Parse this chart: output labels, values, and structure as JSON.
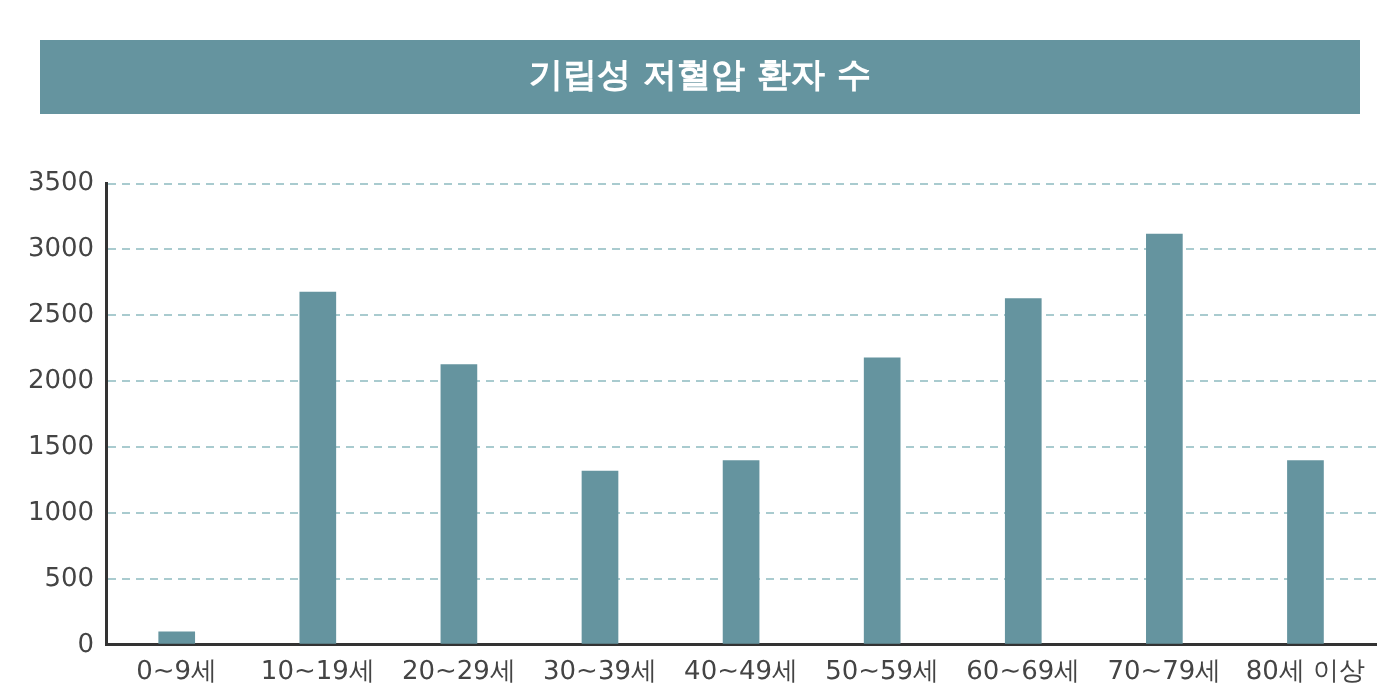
{
  "chart_data": {
    "type": "bar",
    "title": "기립성 저혈압 환자 수",
    "categories": [
      "0~9세",
      "10~19세",
      "20~29세",
      "30~39세",
      "40~49세",
      "50~59세",
      "60~69세",
      "70~79세",
      "80세 이상"
    ],
    "values": [
      100,
      2680,
      2130,
      1320,
      1400,
      2180,
      2630,
      3120,
      1400
    ],
    "color": "#65949f",
    "ylim": [
      0,
      3500
    ],
    "yticks": [
      0,
      500,
      1000,
      1500,
      2000,
      2500,
      3000,
      3500
    ],
    "grid": "y",
    "legend": false
  }
}
